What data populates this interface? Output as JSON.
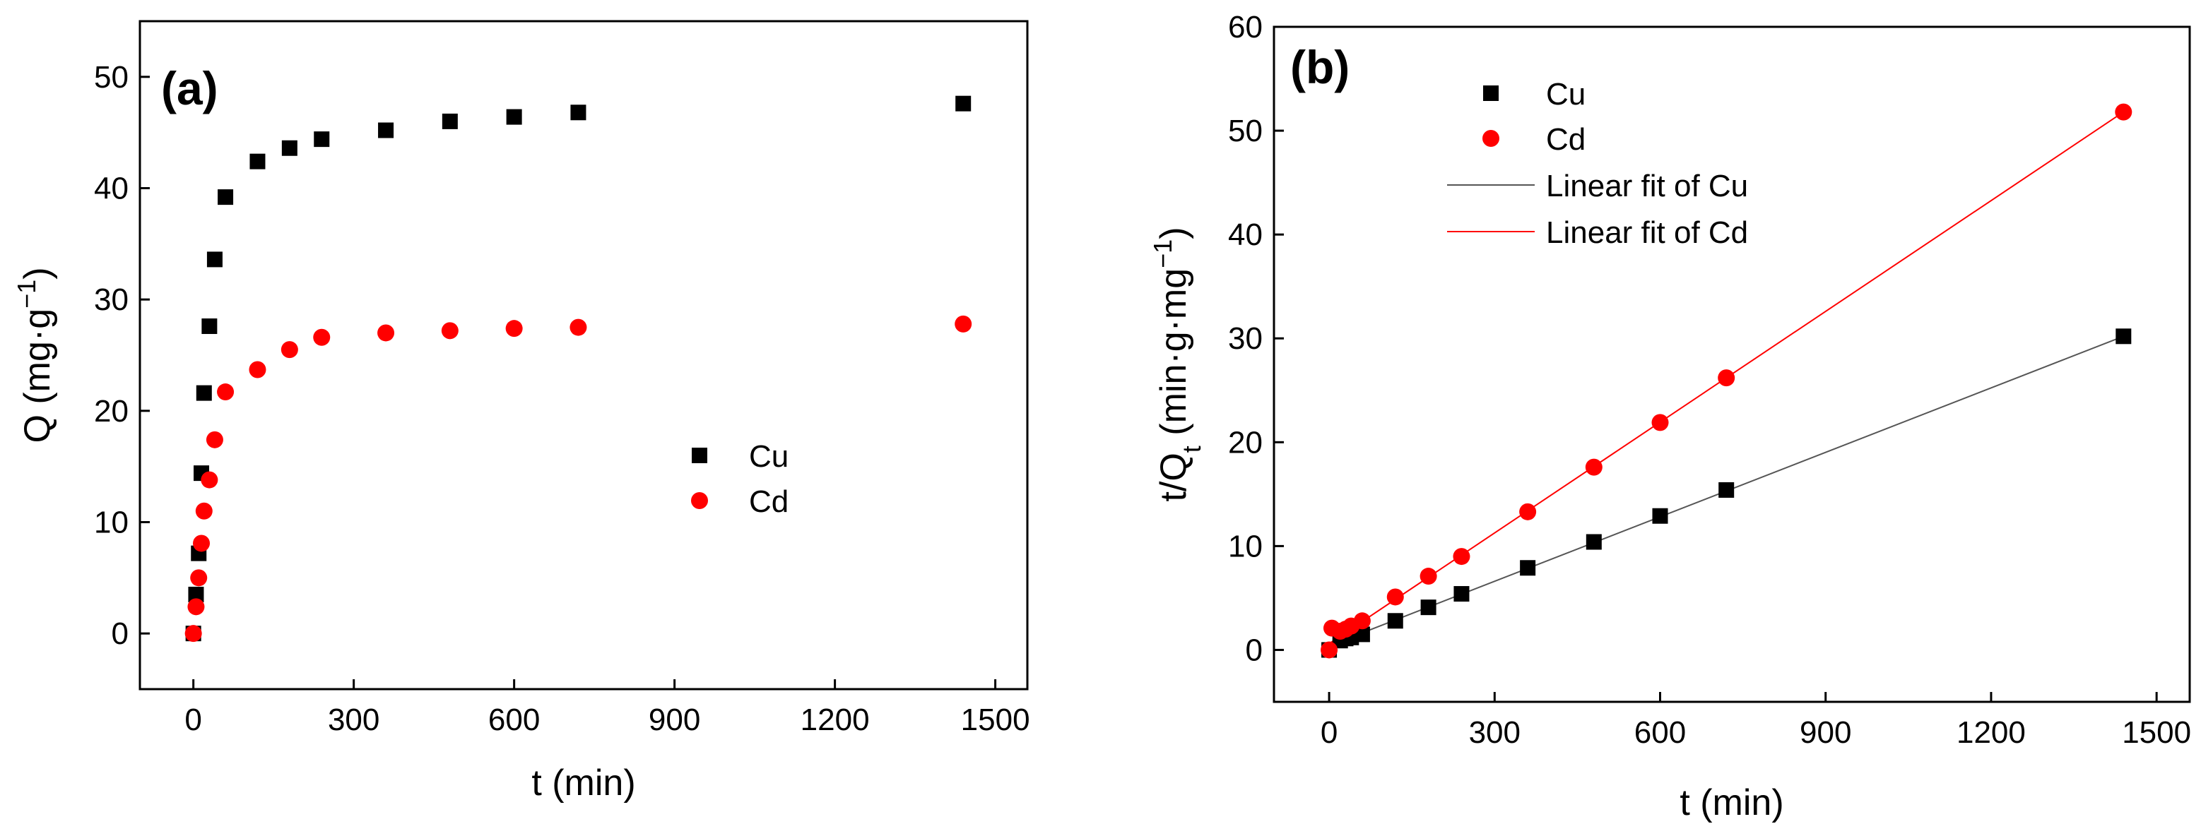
{
  "chart_data": [
    {
      "type": "scatter",
      "panel_label": "(a)",
      "xlabel": "t (min)",
      "ylabel": "Q (mg·g⁻¹)",
      "ylabel_base": "Q (mg·g",
      "ylabel_sup": "−1",
      "ylabel_close": ")",
      "xlim": [
        -100,
        1560
      ],
      "ylim": [
        -5,
        55
      ],
      "xticks": [
        0,
        300,
        600,
        900,
        1200,
        1500
      ],
      "yticks": [
        0,
        10,
        20,
        30,
        40,
        50
      ],
      "legend_position": "center-right",
      "series": [
        {
          "name": "Cu",
          "marker": "square",
          "color": "#000000",
          "x": [
            0,
            5,
            10,
            15,
            20,
            30,
            40,
            60,
            120,
            180,
            240,
            360,
            480,
            600,
            720,
            1440
          ],
          "y": [
            0,
            3.5,
            7.2,
            14.4,
            21.6,
            27.6,
            33.6,
            39.2,
            42.4,
            43.6,
            44.4,
            45.2,
            46.0,
            46.4,
            46.8,
            47.6
          ]
        },
        {
          "name": "Cd",
          "marker": "circle",
          "color": "#ff0000",
          "x": [
            0,
            5,
            10,
            15,
            20,
            30,
            40,
            60,
            120,
            180,
            240,
            360,
            480,
            600,
            720,
            1440
          ],
          "y": [
            0,
            2.4,
            5.0,
            8.1,
            11.0,
            13.8,
            17.4,
            21.7,
            23.7,
            25.5,
            26.6,
            27.0,
            27.2,
            27.4,
            27.5,
            27.8
          ]
        }
      ]
    },
    {
      "type": "scatter",
      "panel_label": "(b)",
      "xlabel": "t (min)",
      "ylabel": "t/Qₜ (min·g·mg⁻¹)",
      "ylabel_base": "t/Q",
      "ylabel_sub": "t",
      "ylabel_mid": " (min·g·mg",
      "ylabel_sup": "−1",
      "ylabel_close": ")",
      "xlim": [
        -100,
        1560
      ],
      "ylim": [
        -5,
        60
      ],
      "xticks": [
        0,
        300,
        600,
        900,
        1200,
        1500
      ],
      "yticks": [
        0,
        10,
        20,
        30,
        40,
        50,
        60
      ],
      "legend_position": "top-left",
      "series": [
        {
          "name": "Cu",
          "marker": "square",
          "color": "#000000",
          "x": [
            0,
            20,
            30,
            40,
            60,
            120,
            180,
            240,
            360,
            480,
            600,
            720,
            1440
          ],
          "y": [
            0,
            0.9,
            1.1,
            1.2,
            1.5,
            2.8,
            4.1,
            5.4,
            7.9,
            10.4,
            12.9,
            15.4,
            30.2
          ]
        },
        {
          "name": "Cd",
          "marker": "circle",
          "color": "#ff0000",
          "x": [
            0,
            5,
            20,
            30,
            40,
            60,
            120,
            180,
            240,
            360,
            480,
            600,
            720,
            1440
          ],
          "y": [
            0,
            2.1,
            1.8,
            2.0,
            2.3,
            2.8,
            5.1,
            7.1,
            9.0,
            13.3,
            17.6,
            21.9,
            26.2,
            51.8
          ]
        },
        {
          "name": "Linear fit of Cu",
          "type": "line",
          "color": "#555555",
          "x": [
            0,
            1440
          ],
          "y": [
            0.4,
            30.2
          ]
        },
        {
          "name": "Linear fit of Cd",
          "type": "line",
          "color": "#ff0000",
          "x": [
            0,
            1440
          ],
          "y": [
            0.6,
            51.8
          ]
        }
      ]
    }
  ]
}
